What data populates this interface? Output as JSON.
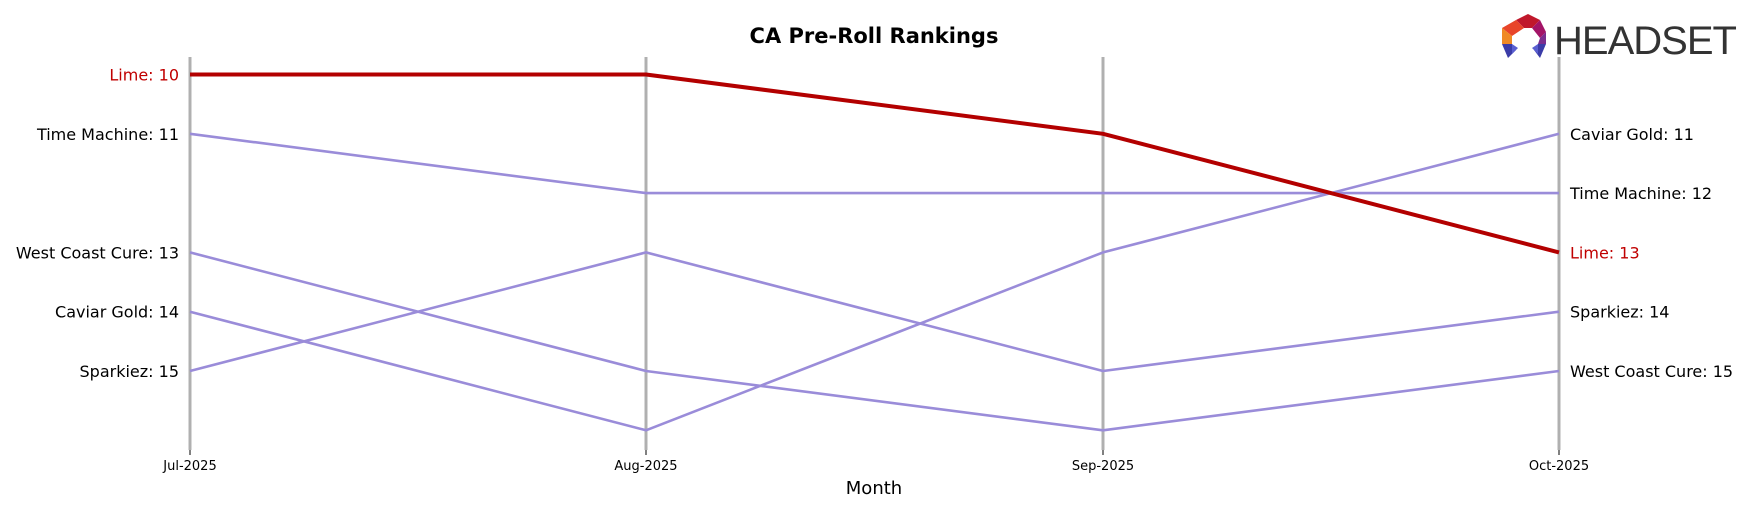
{
  "chart_data": {
    "type": "line",
    "subtype": "bump",
    "title": "CA Pre-Roll Rankings",
    "xlabel": "Month",
    "ylabel": "",
    "categories": [
      "Jul-2025",
      "Aug-2025",
      "Sep-2025",
      "Oct-2025"
    ],
    "y_inverted": true,
    "ylim": [
      10,
      16
    ],
    "grid": false,
    "highlight_color": "#b30000",
    "default_color": "#9a8cd9",
    "axis_line_color": "#b0b0b0",
    "series": [
      {
        "name": "Lime",
        "values": [
          10,
          10,
          11,
          13
        ],
        "highlight": true
      },
      {
        "name": "Time Machine",
        "values": [
          11,
          12,
          12,
          12
        ],
        "highlight": false
      },
      {
        "name": "West Coast Cure",
        "values": [
          13,
          15,
          16,
          15
        ],
        "highlight": false
      },
      {
        "name": "Caviar Gold",
        "values": [
          14,
          16,
          13,
          11
        ],
        "highlight": false
      },
      {
        "name": "Sparkiez",
        "values": [
          15,
          13,
          15,
          14
        ],
        "highlight": false
      }
    ],
    "left_labels": [
      {
        "text": "Lime: 10",
        "rank": 10,
        "highlight": true
      },
      {
        "text": "Time Machine: 11",
        "rank": 11,
        "highlight": false
      },
      {
        "text": "West Coast Cure: 13",
        "rank": 13,
        "highlight": false
      },
      {
        "text": "Caviar Gold: 14",
        "rank": 14,
        "highlight": false
      },
      {
        "text": "Sparkiez: 15",
        "rank": 15,
        "highlight": false
      }
    ],
    "right_labels": [
      {
        "text": "Caviar Gold: 11",
        "rank": 11,
        "highlight": false
      },
      {
        "text": "Time Machine: 12",
        "rank": 12,
        "highlight": false
      },
      {
        "text": "Lime: 13",
        "rank": 13,
        "highlight": true
      },
      {
        "text": "Sparkiez: 14",
        "rank": 14,
        "highlight": false
      },
      {
        "text": "West Coast Cure: 15",
        "rank": 15,
        "highlight": false
      }
    ]
  },
  "logo": {
    "text": "HEADSET"
  }
}
